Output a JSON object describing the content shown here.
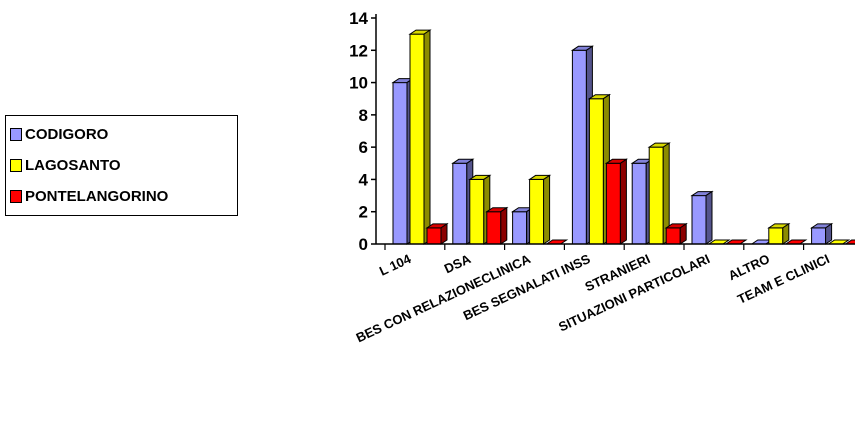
{
  "chart_data": {
    "type": "bar",
    "categories": [
      "L 104",
      "DSA",
      "BES CON RELAZIONECLINICA",
      "BES SEGNALATI INSS",
      "STRANIERI",
      "SITUAZIONI PARTICOLARI",
      "ALTRO",
      "TEAM E CLINICI"
    ],
    "series": [
      {
        "name": "CODIGORO",
        "color": "#9999ff",
        "values": [
          10,
          5,
          2,
          12,
          5,
          3,
          0,
          1
        ]
      },
      {
        "name": "LAGOSANTO",
        "color": "#ffff00",
        "values": [
          13,
          4,
          4,
          9,
          6,
          0,
          1,
          0
        ]
      },
      {
        "name": "PONTELANGORINO",
        "color": "#ff0000",
        "values": [
          1,
          2,
          0,
          5,
          1,
          0,
          0,
          0
        ]
      }
    ],
    "yticks": [
      "0",
      "2",
      "4",
      "6",
      "8",
      "10",
      "12",
      "14"
    ],
    "ylim": [
      0,
      14
    ],
    "grid": false,
    "legend_position": "left",
    "bar_style": "3d"
  }
}
